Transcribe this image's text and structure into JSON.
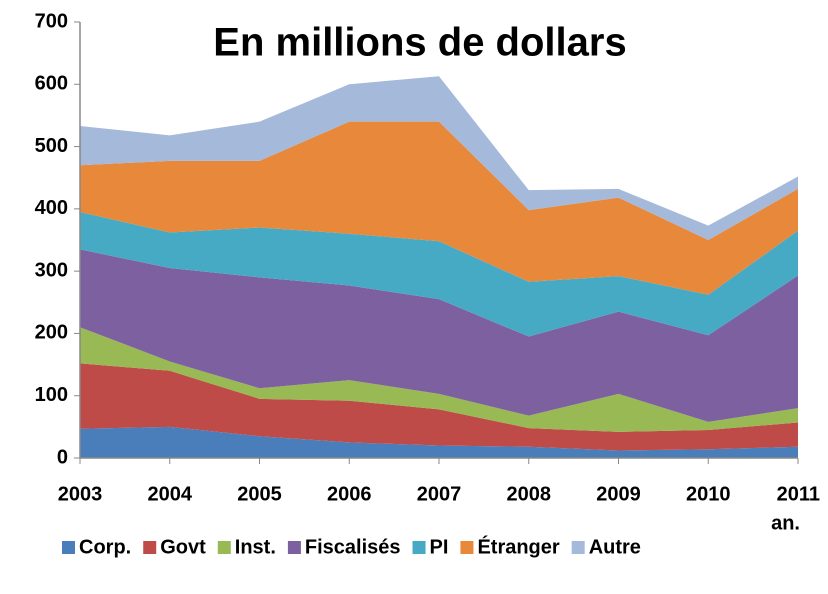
{
  "chart_data": {
    "type": "stacked_area",
    "title": "En millions de dollars",
    "x_label": "an.",
    "categories": [
      "2003",
      "2004",
      "2005",
      "2006",
      "2007",
      "2008",
      "2009",
      "2010",
      "2011"
    ],
    "series": [
      {
        "name": "Corp.",
        "color": "#4a7ebb",
        "values": [
          47,
          50,
          35,
          25,
          20,
          18,
          12,
          14,
          18
        ]
      },
      {
        "name": "Govt",
        "color": "#be4b48",
        "values": [
          105,
          90,
          60,
          67,
          58,
          30,
          30,
          31,
          39
        ]
      },
      {
        "name": "Inst.",
        "color": "#98b954",
        "values": [
          58,
          15,
          17,
          33,
          25,
          20,
          61,
          13,
          23
        ]
      },
      {
        "name": "Fiscalisés",
        "color": "#7d60a0",
        "values": [
          125,
          150,
          178,
          152,
          152,
          127,
          132,
          139,
          213
        ]
      },
      {
        "name": "PI",
        "color": "#46aac5",
        "values": [
          60,
          57,
          80,
          83,
          93,
          88,
          57,
          65,
          72
        ]
      },
      {
        "name": "Étranger",
        "color": "#e8883a",
        "values": [
          75,
          115,
          107,
          180,
          192,
          115,
          126,
          88,
          67
        ]
      },
      {
        "name": "Autre",
        "color": "#a5b9db",
        "values": [
          63,
          41,
          63,
          60,
          73,
          32,
          14,
          23,
          20
        ]
      }
    ],
    "ylim": [
      0,
      700
    ],
    "yticks": [
      0,
      100,
      200,
      300,
      400,
      500,
      600,
      700
    ],
    "grid": false,
    "legend": "bottom"
  }
}
